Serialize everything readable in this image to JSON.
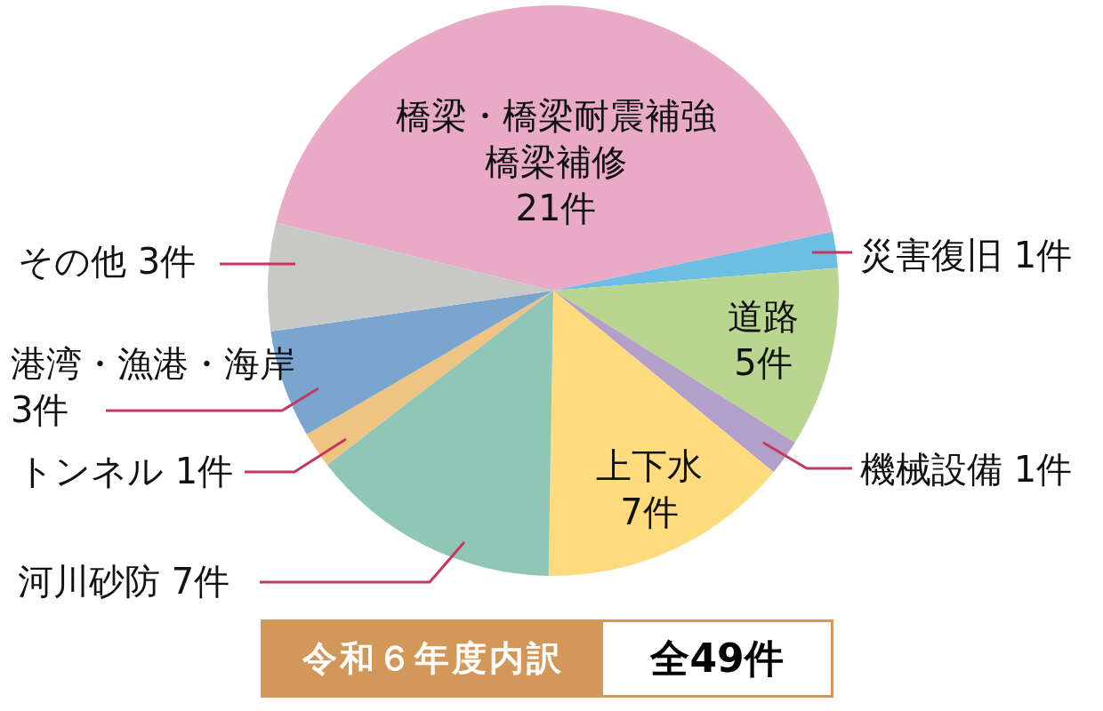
{
  "chart_data": {
    "type": "pie",
    "title": "令和６年度内訳",
    "categories": [
      "橋梁・橋梁耐震補強橋梁補修",
      "災害復旧",
      "道路",
      "機械設備",
      "上下水",
      "河川砂防",
      "トンネル",
      "港湾・漁港・海岸",
      "その他"
    ],
    "values": [
      21,
      1,
      5,
      1,
      7,
      7,
      1,
      3,
      3
    ],
    "value_labels": [
      "21件",
      "1件",
      "5件",
      "1件",
      "7件",
      "7件",
      "1件",
      "3件",
      "3件"
    ],
    "colors": [
      "#e9aac6",
      "#6cbfe2",
      "#bad590",
      "#b3a0ca",
      "#fedc7d",
      "#8fc6b6",
      "#efc382",
      "#79a5cf",
      "#c8c8c6"
    ],
    "annotations": [
      "全49件"
    ]
  }
}
